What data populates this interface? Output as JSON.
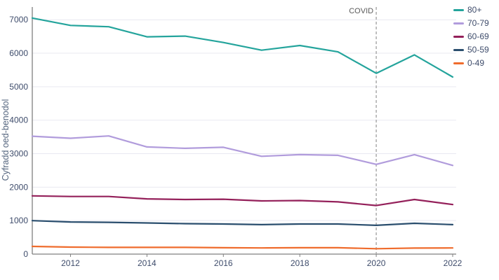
{
  "chart_data": {
    "type": "line",
    "title": "",
    "xlabel": "",
    "ylabel": "Cyfradd oed-benodol",
    "x": [
      2011,
      2012,
      2013,
      2014,
      2015,
      2016,
      2017,
      2018,
      2019,
      2020,
      2021,
      2022
    ],
    "x_tick_years": [
      2012,
      2014,
      2016,
      2018,
      2020,
      2022
    ],
    "x_tick_labels": [
      "2012",
      "2014",
      "2016",
      "2018",
      "2020",
      "2022"
    ],
    "y_ticks": [
      0,
      1000,
      2000,
      3000,
      4000,
      5000,
      6000,
      7000
    ],
    "ylim": [
      0,
      7320
    ],
    "grid": "horizontal",
    "legend_position": "top-right",
    "series": [
      {
        "name": "80+",
        "color": "#24A49C",
        "values": [
          7050,
          6830,
          6790,
          6490,
          6510,
          6320,
          6090,
          6230,
          6040,
          5400,
          5950,
          5290
        ]
      },
      {
        "name": "70-79",
        "color": "#B19CDC",
        "values": [
          3520,
          3460,
          3530,
          3200,
          3160,
          3190,
          2920,
          2970,
          2950,
          2680,
          2970,
          2650
        ]
      },
      {
        "name": "60-69",
        "color": "#94205A",
        "values": [
          1740,
          1720,
          1720,
          1650,
          1630,
          1640,
          1590,
          1600,
          1560,
          1450,
          1630,
          1480
        ]
      },
      {
        "name": "50-59",
        "color": "#2A4E6E",
        "values": [
          1000,
          960,
          950,
          930,
          910,
          900,
          880,
          900,
          900,
          860,
          920,
          880
        ]
      },
      {
        "name": "0-49",
        "color": "#EF6C2D",
        "values": [
          230,
          210,
          200,
          200,
          200,
          190,
          185,
          190,
          190,
          160,
          180,
          185
        ]
      }
    ],
    "annotation": {
      "label": "COVID",
      "x": 2020
    }
  },
  "style": {
    "background": "#ffffff",
    "axis_line": "#7f7f7f",
    "gridline": "#e9e9f1",
    "tick_label": "#3e4c6b",
    "axis_title": "#54657e",
    "annotation_text": "#595959",
    "annotation_line": "#a6a6a6"
  }
}
